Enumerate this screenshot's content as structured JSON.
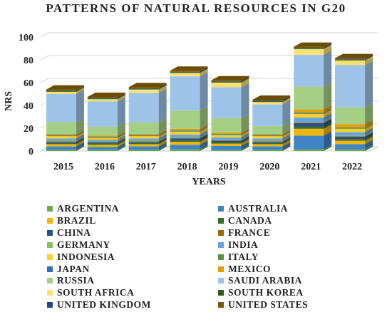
{
  "chart_data": {
    "type": "bar",
    "stacked": true,
    "title": "PATTERNS OF NATURAL RESOURCES IN G20",
    "xlabel": "YEARS",
    "ylabel": "NRS",
    "ylim": [
      0,
      100
    ],
    "yticks": [
      0,
      20,
      40,
      60,
      80,
      100
    ],
    "grid": true,
    "legend_position": "bottom",
    "categories": [
      "2015",
      "2016",
      "2017",
      "2018",
      "2019",
      "2020",
      "2021",
      "2022"
    ],
    "series": [
      {
        "name": "ARGENTINA",
        "color": "#6aaa4c",
        "values": [
          1,
          1,
          1,
          1.5,
          1,
          1,
          1.5,
          1.5
        ]
      },
      {
        "name": "AUSTRALIA",
        "color": "#3f84c5",
        "values": [
          3,
          2.5,
          3,
          4,
          3.5,
          3,
          12,
          4.5
        ]
      },
      {
        "name": "BRAZIL",
        "color": "#f2b606",
        "values": [
          2,
          2,
          2,
          2.5,
          2,
          2,
          6,
          3
        ]
      },
      {
        "name": "CANADA",
        "color": "#3a6b2a",
        "values": [
          1,
          1,
          1,
          1.5,
          1,
          1,
          2,
          1.5
        ]
      },
      {
        "name": "CHINA",
        "color": "#24508e",
        "values": [
          1,
          1,
          1,
          1.5,
          1.5,
          1,
          3,
          2
        ]
      },
      {
        "name": "FRANCE",
        "color": "#9c6600",
        "values": [
          0.5,
          0.5,
          0.5,
          0.5,
          0.5,
          0.5,
          0.5,
          0.5
        ]
      },
      {
        "name": "GERMANY",
        "color": "#86bf62",
        "values": [
          0.5,
          0.5,
          0.5,
          0.5,
          0.5,
          0.5,
          0.5,
          0.5
        ]
      },
      {
        "name": "INDIA",
        "color": "#6aa2dc",
        "values": [
          2,
          1.5,
          2,
          2.5,
          2,
          2,
          4,
          3
        ]
      },
      {
        "name": "INDONESIA",
        "color": "#ffd028",
        "values": [
          2,
          1.5,
          2,
          2.5,
          2,
          2,
          3,
          3
        ]
      },
      {
        "name": "ITALY",
        "color": "#5f8f3c",
        "values": [
          0.5,
          0.5,
          0.5,
          0.5,
          0.5,
          0.5,
          0.5,
          0.5
        ]
      },
      {
        "name": "JAPAN",
        "color": "#2f6fb8",
        "values": [
          0.5,
          0.5,
          0.5,
          0.5,
          0.5,
          0.5,
          0.5,
          0.5
        ]
      },
      {
        "name": "MEXICO",
        "color": "#e0a000",
        "values": [
          1,
          1,
          1,
          1.5,
          1,
          1,
          3,
          3
        ]
      },
      {
        "name": "RUSSIA",
        "color": "#a6cf86",
        "values": [
          10,
          8,
          10,
          16,
          13,
          7,
          20,
          15
        ]
      },
      {
        "name": "SAUDI ARABIA",
        "color": "#9dc3e8",
        "values": [
          25,
          22,
          26,
          30,
          27,
          19,
          28,
          37
        ]
      },
      {
        "name": "SOUTH AFRICA",
        "color": "#ffe171",
        "values": [
          2,
          2,
          3,
          3,
          4,
          2,
          5,
          4
        ]
      },
      {
        "name": "SOUTH KOREA",
        "color": "#2e5a20",
        "values": [
          0.5,
          0.5,
          0.5,
          0.5,
          0.5,
          0.5,
          0.5,
          0.5
        ]
      },
      {
        "name": "UNITED KINGDOM",
        "color": "#1f4a7e",
        "values": [
          0.5,
          0.5,
          0.5,
          0.5,
          0.5,
          0.5,
          0.5,
          0.5
        ]
      },
      {
        "name": "UNITED STATES",
        "color": "#7d5a00",
        "values": [
          1,
          1,
          1,
          1,
          1,
          1,
          1,
          1
        ]
      }
    ]
  }
}
